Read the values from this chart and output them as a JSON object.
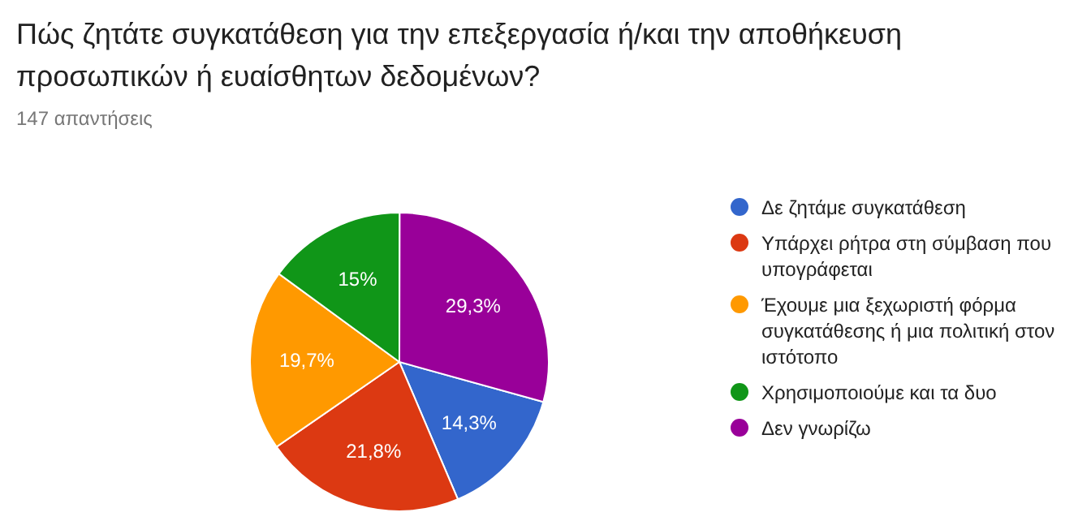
{
  "chart_data": {
    "type": "pie",
    "title": "Πώς ζητάτε συγκατάθεση για την επεξεργασία ή/και την αποθήκευση προσωπικών ή ευαίσθητων δεδομένων?",
    "subtitle": "147 απαντήσεις",
    "categories": [
      "Δε ζητάμε συγκατάθεση",
      "Υπάρχει ρήτρα στη σύμβαση που υπογράφεται",
      "Έχουμε μια ξεχωριστή φόρμα συγκατάθεσης ή μια πολιτική στον ιστότοπο",
      "Χρησιμοποιούμε και τα δυο",
      "Δεν γνωρίζω"
    ],
    "values": [
      14.3,
      21.8,
      19.7,
      15,
      29.3
    ],
    "colors": [
      "#3366cc",
      "#dc3912",
      "#ff9900",
      "#109618",
      "#990099"
    ],
    "value_labels": [
      "14,3%",
      "21,8%",
      "19,7%",
      "15%",
      "29,3%"
    ],
    "legend": "right"
  }
}
